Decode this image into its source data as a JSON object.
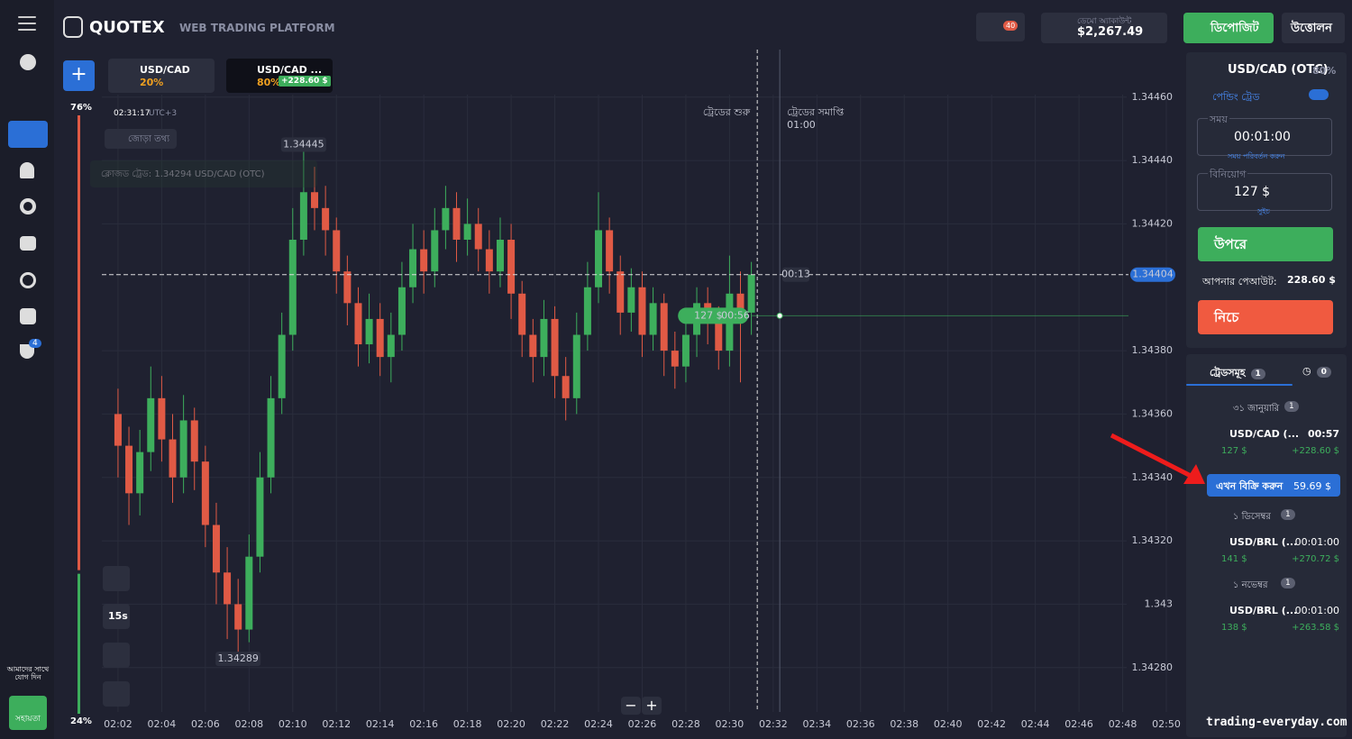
{
  "header": {
    "logo": "QUOTEX",
    "subtitle": "WEB TRADING PLATFORM",
    "notifications": "40",
    "account_type": "ডেমো অ্যাকাউন্ট",
    "balance": "$2,267.49",
    "deposit": "ডিপোজিট",
    "withdraw": "উত্তোলন"
  },
  "sidebar": {
    "badge": "4",
    "community": "আমাদের সাথে যোগ দিন",
    "support": "সহায়তা"
  },
  "tabs": [
    {
      "pair": "USD/CAD",
      "payout": "20%"
    },
    {
      "pair": "USD/CAD ...",
      "payout": "80%",
      "profit": "+228.60 $"
    }
  ],
  "chart_info": {
    "time": "02:31:17",
    "timezone": "UTC+3",
    "pair_info": "জোড়া তথ্য",
    "closed_trade_note": "ক্লোজড ট্রেড: 1.34294 USD/CAD (OTC)"
  },
  "tools": {
    "interval": "15s"
  },
  "sentiment": {
    "up": {
      "value": 76,
      "label": "76%"
    },
    "down": {
      "value": 24,
      "label": "24%"
    }
  },
  "chart_data": {
    "type": "candlestick",
    "x": [
      2,
      2.5,
      3,
      3.5,
      4,
      4.5,
      5,
      5.5,
      6,
      6.5,
      7,
      7.5,
      8,
      8.5,
      9,
      9.5,
      10,
      10.5,
      11,
      11.5,
      12,
      12.5,
      13,
      13.5,
      14,
      14.5,
      15,
      15.5,
      16,
      16.5,
      17,
      17.5,
      18,
      18.5,
      19,
      19.5,
      20,
      20.5,
      21,
      21.5,
      22,
      22.5,
      23,
      23.5,
      24,
      24.5,
      25,
      25.5,
      26,
      26.5,
      27,
      27.5,
      28,
      28.5,
      29,
      29.5,
      30,
      30.5,
      31
    ],
    "open": [
      1.3436,
      1.3435,
      1.34335,
      1.34348,
      1.34365,
      1.34352,
      1.3434,
      1.34358,
      1.34345,
      1.34325,
      1.3431,
      1.343,
      1.34292,
      1.34315,
      1.3434,
      1.34365,
      1.34385,
      1.34415,
      1.3443,
      1.34425,
      1.34418,
      1.34405,
      1.34395,
      1.34382,
      1.3439,
      1.34378,
      1.34385,
      1.344,
      1.34412,
      1.34405,
      1.34418,
      1.34425,
      1.34415,
      1.3442,
      1.34412,
      1.34405,
      1.34415,
      1.34398,
      1.34385,
      1.34378,
      1.3439,
      1.34372,
      1.34365,
      1.34385,
      1.344,
      1.34418,
      1.34405,
      1.34392,
      1.344,
      1.34385,
      1.34395,
      1.3438,
      1.34375,
      1.34385,
      1.34395,
      1.3439,
      1.3438,
      1.34398,
      1.34392
    ],
    "high": [
      1.34368,
      1.34356,
      1.34355,
      1.34375,
      1.34372,
      1.3436,
      1.34366,
      1.34362,
      1.3435,
      1.34332,
      1.34318,
      1.34308,
      1.34322,
      1.34348,
      1.34372,
      1.34392,
      1.34425,
      1.34445,
      1.34438,
      1.34432,
      1.34422,
      1.3441,
      1.344,
      1.34398,
      1.34395,
      1.34392,
      1.34408,
      1.3442,
      1.34418,
      1.34425,
      1.34432,
      1.3443,
      1.34428,
      1.34425,
      1.34418,
      1.34422,
      1.3442,
      1.34402,
      1.3439,
      1.34396,
      1.34394,
      1.34378,
      1.34392,
      1.34408,
      1.3443,
      1.34422,
      1.3441,
      1.34406,
      1.34405,
      1.344,
      1.34398,
      1.34386,
      1.34392,
      1.344,
      1.344,
      1.34394,
      1.3441,
      1.34405,
      1.34408
    ],
    "low": [
      1.3434,
      1.34325,
      1.34328,
      1.34342,
      1.34345,
      1.34332,
      1.34335,
      1.34336,
      1.34318,
      1.343,
      1.34289,
      1.34285,
      1.34288,
      1.3431,
      1.34335,
      1.3436,
      1.3438,
      1.3441,
      1.34418,
      1.3441,
      1.34398,
      1.34388,
      1.34375,
      1.34376,
      1.34372,
      1.3437,
      1.3438,
      1.34395,
      1.34398,
      1.344,
      1.34412,
      1.34408,
      1.3441,
      1.34405,
      1.34398,
      1.344,
      1.3439,
      1.34378,
      1.3437,
      1.34372,
      1.34365,
      1.34358,
      1.3436,
      1.3438,
      1.34395,
      1.34398,
      1.34385,
      1.34386,
      1.34378,
      1.3438,
      1.34372,
      1.34368,
      1.3437,
      1.34378,
      1.34382,
      1.34374,
      1.34375,
      1.3437,
      1.34385
    ],
    "close": [
      1.3435,
      1.34335,
      1.34348,
      1.34365,
      1.34352,
      1.3434,
      1.34358,
      1.34345,
      1.34325,
      1.3431,
      1.343,
      1.34292,
      1.34315,
      1.3434,
      1.34365,
      1.34385,
      1.34415,
      1.3443,
      1.34425,
      1.34418,
      1.34405,
      1.34395,
      1.34382,
      1.3439,
      1.34378,
      1.34385,
      1.344,
      1.34412,
      1.34405,
      1.34418,
      1.34425,
      1.34415,
      1.3442,
      1.34412,
      1.34405,
      1.34415,
      1.34398,
      1.34385,
      1.34378,
      1.3439,
      1.34372,
      1.34365,
      1.34385,
      1.344,
      1.34418,
      1.34405,
      1.34392,
      1.344,
      1.34385,
      1.34395,
      1.3438,
      1.34375,
      1.34385,
      1.34395,
      1.3439,
      1.3438,
      1.34398,
      1.34392,
      1.34404
    ],
    "up_color": "#3dae5c",
    "down_color": "#e05a45",
    "xlim": [
      1.26,
      50.66
    ],
    "xticks": [
      {
        "value": 2,
        "label": "02:02"
      },
      {
        "value": 4,
        "label": "02:04"
      },
      {
        "value": 6,
        "label": "02:06"
      },
      {
        "value": 8,
        "label": "02:08"
      },
      {
        "value": 10,
        "label": "02:10"
      },
      {
        "value": 12,
        "label": "02:12"
      },
      {
        "value": 14,
        "label": "02:14"
      },
      {
        "value": 16,
        "label": "02:16"
      },
      {
        "value": 18,
        "label": "02:18"
      },
      {
        "value": 20,
        "label": "02:20"
      },
      {
        "value": 22,
        "label": "02:22"
      },
      {
        "value": 24,
        "label": "02:24"
      },
      {
        "value": 26,
        "label": "02:26"
      },
      {
        "value": 28,
        "label": "02:28"
      },
      {
        "value": 30,
        "label": "02:30"
      },
      {
        "value": 32,
        "label": "02:32"
      },
      {
        "value": 34,
        "label": "02:34"
      },
      {
        "value": 36,
        "label": "02:36"
      },
      {
        "value": 38,
        "label": "02:38"
      },
      {
        "value": 40,
        "label": "02:40"
      },
      {
        "value": 42,
        "label": "02:42"
      },
      {
        "value": 44,
        "label": "02:44"
      },
      {
        "value": 46,
        "label": "02:46"
      },
      {
        "value": 48,
        "label": "02:48"
      },
      {
        "value": 50,
        "label": "02:50"
      }
    ],
    "ylim": [
      1.34266,
      1.34475
    ],
    "yticks": [
      {
        "value": 1.3428,
        "label": "1.34280"
      },
      1.343,
      {
        "value": 1.3432,
        "label": "1.34320"
      },
      {
        "value": 1.3434,
        "label": "1.34340"
      },
      {
        "value": 1.3436,
        "label": "1.34360"
      },
      {
        "value": 1.3438,
        "label": "1.34380"
      },
      {
        "value": 1.3442,
        "label": "1.34420"
      },
      {
        "value": 1.3444,
        "label": "1.34440"
      },
      {
        "value": 1.3446,
        "label": "1.34460"
      }
    ],
    "grid": true,
    "current_price": 1.34404,
    "timer": "00:13",
    "high_marker": 1.34445,
    "low_marker": 1.34289,
    "now_x": 31.27,
    "expiry_x": 32.3,
    "trade_start_label": "ট্রেডের শুরু",
    "trade_end_label": "ট্রেডের সমাপ্তি",
    "trade_end_time": "01:00",
    "trade": {
      "price": 1.34391,
      "amount": "127 $",
      "time": "00:56"
    }
  },
  "zoom": {
    "out": "−",
    "in": "+"
  },
  "panel": {
    "pair": "USD/CAD (OTC)",
    "payout": "80%",
    "pending": "পেন্ডিং ট্রেড",
    "time_label": "সময়",
    "time": "00:01:00",
    "time_change": "সময় পরিবর্তন করুন",
    "invest_label": "বিনিয়োগ",
    "invest": "127 $",
    "switch": "সুইচ",
    "up": "উপরে",
    "payout_label": "আপনার পেআউট:",
    "payout_value": "228.60 $",
    "down": "নিচে"
  },
  "trades": {
    "title": "ট্রেডসমূহ",
    "count": "1",
    "pending": "0",
    "sell": {
      "label": "এখন বিক্রি করুন",
      "value": "59.69 $"
    },
    "groups": [
      {
        "date": "৩১ জানুয়ারি",
        "count": "1",
        "items": [
          {
            "pair": "USD/CAD (...",
            "time": "00:57",
            "amount": "127 $",
            "profit": "+228.60 $"
          }
        ]
      },
      {
        "date": "১ ডিসেম্বর",
        "count": "1",
        "items": [
          {
            "pair": "USD/BRL (...",
            "time": "00:01:00",
            "amount": "141 $",
            "profit": "+270.72 $"
          }
        ]
      },
      {
        "date": "১ নভেম্বর",
        "count": "1",
        "items": [
          {
            "pair": "USD/BRL (...",
            "time": "00:01:00",
            "amount": "138 $",
            "profit": "+263.58 $"
          }
        ]
      }
    ]
  },
  "watermark": "trading-everyday.com"
}
